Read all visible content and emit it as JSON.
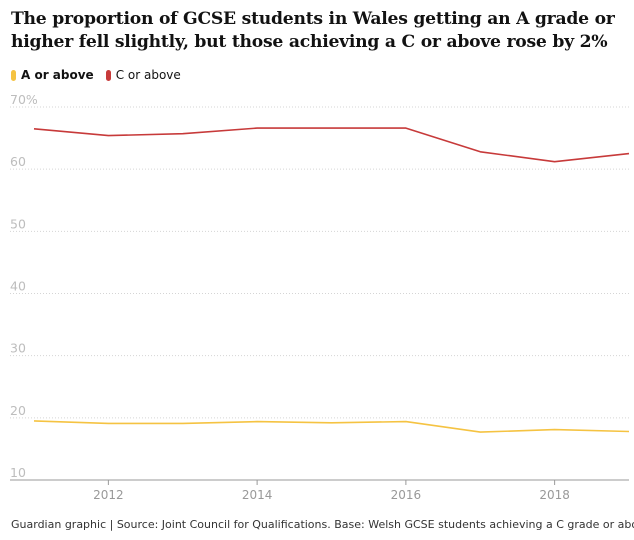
{
  "chart_data": {
    "type": "line",
    "title": "The proportion of GCSE students in Wales getting an A grade or higher fell slightly, but those achieving a C or above rose by 2%",
    "xlabel": "",
    "ylabel": "",
    "x": [
      2011,
      2012,
      2013,
      2014,
      2015,
      2016,
      2017,
      2018,
      2019
    ],
    "xlim": [
      2011,
      2019
    ],
    "ylim": [
      10,
      70
    ],
    "yticks": [
      "70%",
      "60",
      "50",
      "40",
      "30",
      "20",
      "10"
    ],
    "xticks": [
      "2012",
      "2014",
      "2016",
      "2018"
    ],
    "grid": true,
    "legend_position": "top-left",
    "series": [
      {
        "name": "A or above",
        "color": "#f5c342",
        "values": [
          19.5,
          19.1,
          19.1,
          19.4,
          19.2,
          19.4,
          17.7,
          18.1,
          17.8
        ]
      },
      {
        "name": "C or above",
        "color": "#c73a3a",
        "values": [
          66.5,
          65.4,
          65.7,
          66.6,
          66.6,
          66.6,
          62.8,
          61.2,
          62.5
        ]
      }
    ]
  },
  "footer": "Guardian graphic | Source: Joint Council for Qualifications. Base: Welsh GCSE students achieving a C grade or above"
}
